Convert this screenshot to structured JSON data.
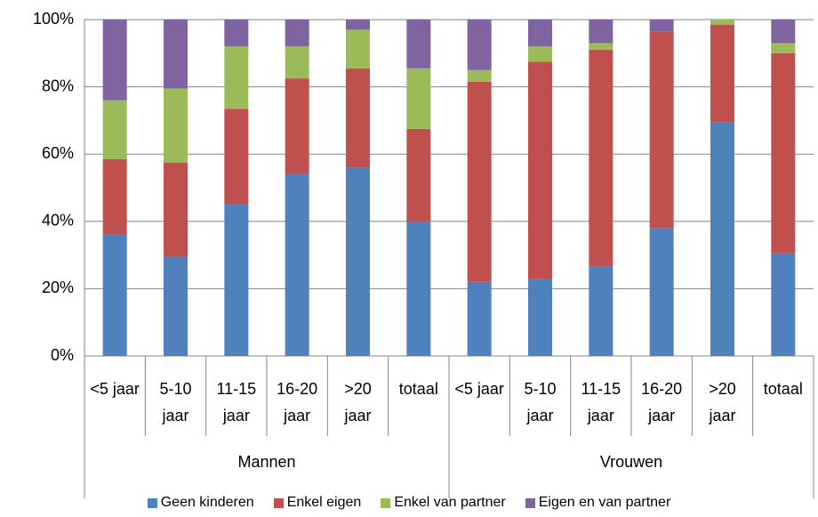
{
  "chart_data": {
    "type": "stacked_bar",
    "categories": [
      "<5 jaar",
      "5-10 jaar",
      "11-15 jaar",
      "16-20 jaar",
      ">20 jaar",
      "totaal",
      "<5 jaar",
      "5-10 jaar",
      "11-15 jaar",
      "16-20 jaar",
      ">20 jaar",
      "totaal"
    ],
    "groups": [
      "Mannen",
      "Vrouwen"
    ],
    "series": [
      {
        "name": "Geen kinderen",
        "color": "#4f81bd",
        "values": [
          36,
          29.5,
          45,
          54,
          56,
          40,
          22,
          23,
          26.5,
          38,
          69.5,
          30.5
        ]
      },
      {
        "name": "Enkel eigen",
        "color": "#c0504d",
        "values": [
          22.5,
          28,
          28.5,
          28.5,
          29.5,
          27.5,
          59.5,
          64.5,
          64.5,
          58.5,
          29,
          59.5
        ]
      },
      {
        "name": "Enkel van partner",
        "color": "#9bbb59",
        "values": [
          17.5,
          22,
          18.5,
          9.5,
          11.5,
          18,
          3.5,
          4.5,
          2,
          0,
          1.5,
          3
        ]
      },
      {
        "name": "Eigen en van partner",
        "color": "#8064a2",
        "values": [
          24,
          20.5,
          8,
          8,
          3,
          14.5,
          15,
          8,
          7,
          3.5,
          0,
          7
        ]
      }
    ],
    "ylim": [
      0,
      100
    ],
    "yticks": [
      {
        "value": 0,
        "label": "0%"
      },
      {
        "value": 20,
        "label": "20%"
      },
      {
        "value": 40,
        "label": "40%"
      },
      {
        "value": 60,
        "label": "60%"
      },
      {
        "value": 80,
        "label": "80%"
      },
      {
        "value": 100,
        "label": "100%"
      }
    ],
    "grid": true
  }
}
